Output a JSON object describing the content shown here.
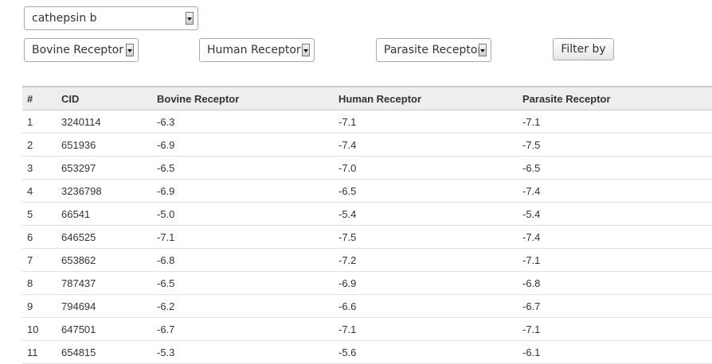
{
  "filters": {
    "compound": {
      "value": "cathepsin b"
    },
    "bovine": {
      "value": "Bovine Receptor"
    },
    "human": {
      "value": "Human Receptor"
    },
    "parasite": {
      "value": "Parasite Receptor"
    },
    "filter_button_label": "Filter by"
  },
  "table": {
    "headers": [
      "#",
      "CID",
      "Bovine Receptor",
      "Human Receptor",
      "Parasite Receptor"
    ],
    "rows": [
      [
        "1",
        "3240114",
        "-6.3",
        "-7.1",
        "-7.1"
      ],
      [
        "2",
        "651936",
        "-6.9",
        "-7.4",
        "-7.5"
      ],
      [
        "3",
        "653297",
        "-6.5",
        "-7.0",
        "-6.5"
      ],
      [
        "4",
        "3236798",
        "-6.9",
        "-6.5",
        "-7.4"
      ],
      [
        "5",
        "66541",
        "-5.0",
        "-5.4",
        "-5.4"
      ],
      [
        "6",
        "646525",
        "-7.1",
        "-7.5",
        "-7.4"
      ],
      [
        "7",
        "653862",
        "-6.8",
        "-7.2",
        "-7.1"
      ],
      [
        "8",
        "787437",
        "-6.5",
        "-6.9",
        "-6.8"
      ],
      [
        "9",
        "794694",
        "-6.2",
        "-6.6",
        "-6.7"
      ],
      [
        "10",
        "647501",
        "-6.7",
        "-7.1",
        "-7.1"
      ],
      [
        "11",
        "654815",
        "-5.3",
        "-5.6",
        "-6.1"
      ]
    ]
  }
}
